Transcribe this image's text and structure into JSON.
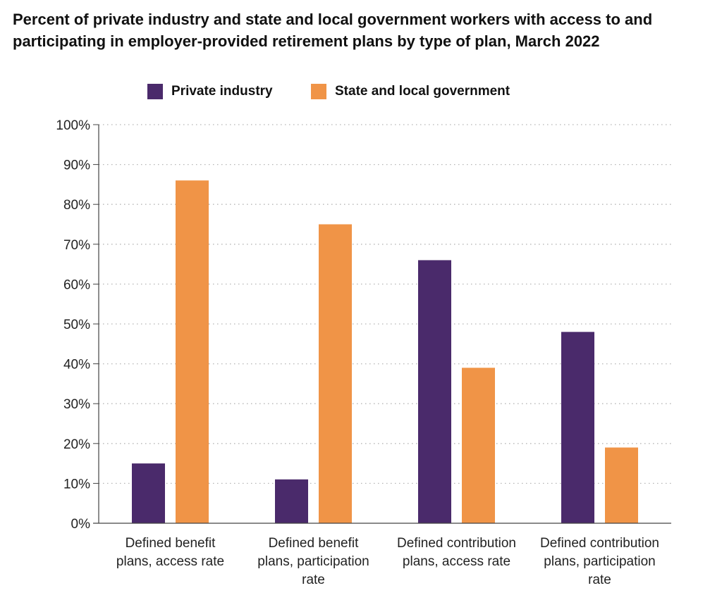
{
  "chart_data": {
    "type": "bar",
    "title": "Percent of private industry and state and local government workers with access to and participating in employer-provided retirement plans by type of plan, March 2022",
    "categories": [
      [
        "Defined benefit",
        "plans, access rate"
      ],
      [
        "Defined benefit",
        "plans, participation",
        "rate"
      ],
      [
        "Defined contribution",
        "plans, access rate"
      ],
      [
        "Defined contribution",
        "plans, participation",
        "rate"
      ]
    ],
    "series": [
      {
        "name": "Private industry",
        "color": "#4a2a6b",
        "values": [
          15,
          11,
          66,
          48
        ]
      },
      {
        "name": "State and local government",
        "color": "#f09447",
        "values": [
          86,
          75,
          39,
          19
        ]
      }
    ],
    "ylim": [
      0,
      100
    ],
    "yticks": [
      0,
      10,
      20,
      30,
      40,
      50,
      60,
      70,
      80,
      90,
      100
    ],
    "ytick_suffix": "%",
    "grid": true,
    "legend_position": "top",
    "xlabel": "",
    "ylabel": ""
  }
}
